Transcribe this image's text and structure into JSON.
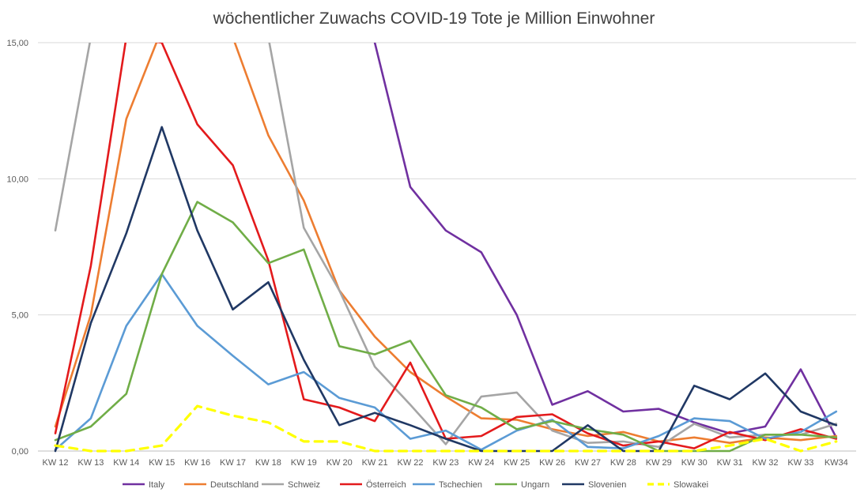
{
  "chart_data": {
    "type": "line",
    "title": "wöchentlicher Zuwachs COVID-19 Tote je Million Einwohner",
    "xlabel": "",
    "ylabel": "",
    "categories": [
      "KW 12",
      "KW 13",
      "KW 14",
      "KW 15",
      "KW 16",
      "KW 17",
      "KW 18",
      "KW 19",
      "KW 20",
      "KW 21",
      "KW 22",
      "KW 23",
      "KW 24",
      "KW 25",
      "KW 26",
      "KW 27",
      "KW 28",
      "KW 29",
      "KW 30",
      "KW 31",
      "KW 32",
      "KW 33",
      "KW34"
    ],
    "ylim": [
      0,
      15
    ],
    "yticks": [
      0,
      5,
      10,
      15
    ],
    "ytick_labels": [
      "0,00",
      "5,00",
      "10,00",
      "15,00"
    ],
    "grid": "horizontal",
    "legend_position": "bottom",
    "series": [
      {
        "name": "Italy",
        "color": "#7030a0",
        "dash": false,
        "values": [
          null,
          null,
          null,
          null,
          null,
          null,
          null,
          null,
          null,
          15.0,
          9.7,
          8.1,
          7.3,
          5.0,
          1.7,
          2.2,
          1.45,
          1.55,
          1.05,
          0.65,
          0.9,
          3.0,
          0.5
        ]
      },
      {
        "name": "Deutschland",
        "color": "#ed7d31",
        "dash": false,
        "values": [
          0.9,
          5.0,
          12.2,
          15.5,
          null,
          15.2,
          11.6,
          9.2,
          5.9,
          4.2,
          2.9,
          2.0,
          1.2,
          1.15,
          0.8,
          0.55,
          0.7,
          0.35,
          0.5,
          0.3,
          0.5,
          0.4,
          0.55
        ]
      },
      {
        "name": "Schweiz",
        "color": "#a5a5a5",
        "dash": false,
        "values": [
          8.1,
          15.2,
          null,
          null,
          null,
          null,
          15.2,
          8.2,
          5.9,
          3.1,
          1.7,
          0.25,
          2.0,
          2.15,
          0.75,
          0.3,
          0.35,
          0.15,
          1.0,
          0.5,
          0.6,
          0.6,
          1.0
        ]
      },
      {
        "name": "Österreich",
        "color": "#e31a1c",
        "dash": false,
        "values": [
          0.65,
          6.8,
          15.2,
          15.0,
          12.0,
          10.5,
          7.0,
          1.9,
          1.6,
          1.1,
          3.25,
          0.45,
          0.55,
          1.25,
          1.35,
          0.65,
          0.2,
          0.35,
          0.1,
          0.7,
          0.4,
          0.8,
          0.45
        ]
      },
      {
        "name": "Tschechien",
        "color": "#5b9bd5",
        "dash": false,
        "values": [
          0.05,
          1.2,
          4.6,
          6.5,
          4.6,
          3.5,
          2.45,
          2.9,
          1.95,
          1.6,
          0.45,
          0.75,
          0.05,
          0.75,
          1.15,
          0.15,
          0.1,
          0.55,
          1.2,
          1.1,
          0.45,
          0.7,
          1.45
        ]
      },
      {
        "name": "Ungarn",
        "color": "#70ad47",
        "dash": false,
        "values": [
          0.4,
          0.9,
          2.1,
          6.5,
          9.15,
          8.4,
          6.9,
          7.4,
          3.85,
          3.55,
          4.05,
          2.05,
          1.6,
          0.8,
          1.1,
          0.8,
          0.6,
          0.0,
          0.0,
          0.0,
          0.6,
          0.6,
          0.5
        ]
      },
      {
        "name": "Slovenien",
        "color": "#203864",
        "dash": false,
        "values": [
          0.0,
          4.7,
          8.0,
          11.9,
          8.1,
          5.2,
          6.2,
          3.35,
          0.95,
          1.4,
          0.95,
          0.45,
          0.0,
          0.0,
          0.0,
          0.95,
          0.0,
          0.0,
          2.4,
          1.9,
          2.85,
          1.45,
          0.95
        ]
      },
      {
        "name": "Slowakei",
        "color": "#ffff00",
        "dash": true,
        "values": [
          0.2,
          0.0,
          0.0,
          0.2,
          1.65,
          1.3,
          1.05,
          0.35,
          0.35,
          0.0,
          0.0,
          0.0,
          0.0,
          0.0,
          0.0,
          0.0,
          0.0,
          0.0,
          0.0,
          0.2,
          0.45,
          0.0,
          0.35
        ]
      }
    ]
  }
}
